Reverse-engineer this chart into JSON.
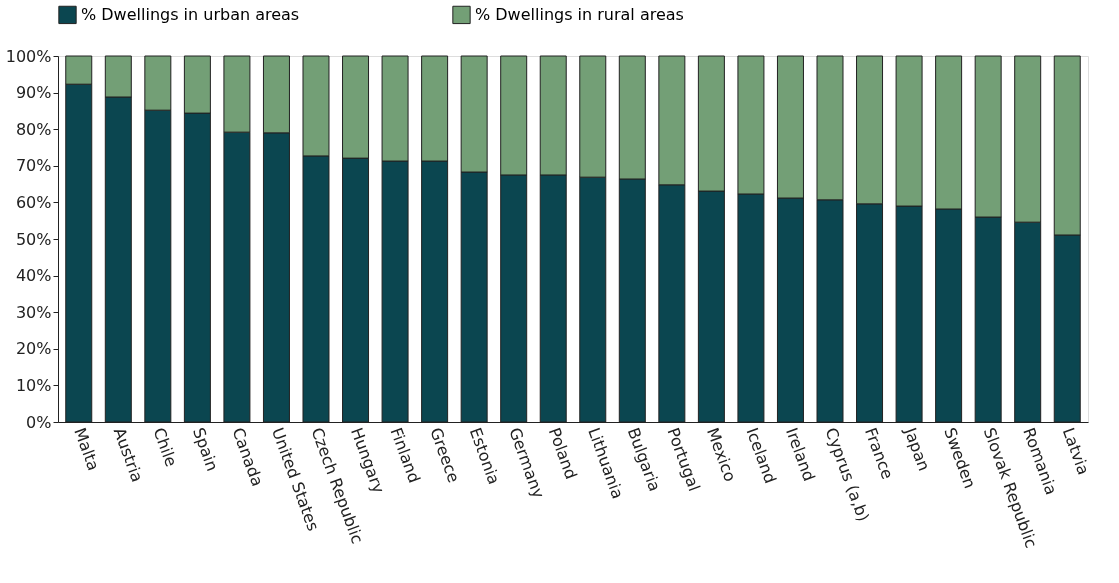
{
  "chart_data": {
    "type": "bar",
    "stacked": true,
    "categories": [
      "Malta",
      "Austria",
      "Chile",
      "Spain",
      "Canada",
      "United States",
      "Czech Republic",
      "Hungary",
      "Finland",
      "Greece",
      "Estonia",
      "Germany",
      "Poland",
      "Lithuania",
      "Bulgaria",
      "Portugal",
      "Mexico",
      "Iceland",
      "Ireland",
      "Cyprus (a,b)",
      "France",
      "Japan",
      "Sweden",
      "Slovak Republic",
      "Romania",
      "Latvia"
    ],
    "series": [
      {
        "name": "% Dwellings in urban areas",
        "color": "#0b4650",
        "values": [
          92.3,
          88.8,
          85.2,
          84.4,
          79.2,
          79.0,
          72.7,
          72.1,
          71.3,
          71.3,
          68.3,
          67.5,
          67.5,
          66.9,
          66.4,
          64.8,
          63.1,
          62.3,
          61.2,
          60.7,
          59.6,
          59.0,
          58.2,
          56.0,
          54.6,
          51.1
        ]
      },
      {
        "name": "% Dwellings in rural areas",
        "color": "#739f76",
        "values": [
          7.7,
          11.2,
          14.8,
          15.6,
          20.8,
          21.0,
          27.3,
          27.9,
          28.7,
          28.7,
          31.7,
          32.5,
          32.5,
          33.1,
          33.6,
          35.2,
          36.9,
          37.7,
          38.8,
          39.3,
          40.4,
          41.0,
          41.8,
          44.0,
          45.4,
          48.9
        ]
      }
    ],
    "ylim": [
      0,
      100
    ],
    "yticks": [
      {
        "value": 0,
        "label": "0%"
      },
      {
        "value": 10,
        "label": "10%"
      },
      {
        "value": 20,
        "label": "20%"
      },
      {
        "value": 30,
        "label": "30%"
      },
      {
        "value": 40,
        "label": "40%"
      },
      {
        "value": 50,
        "label": "50%"
      },
      {
        "value": 60,
        "label": "60%"
      },
      {
        "value": 70,
        "label": "70%"
      },
      {
        "value": 80,
        "label": "80%"
      },
      {
        "value": 90,
        "label": "90%"
      },
      {
        "value": 100,
        "label": "100%"
      }
    ],
    "grid": false,
    "legend": "top"
  }
}
